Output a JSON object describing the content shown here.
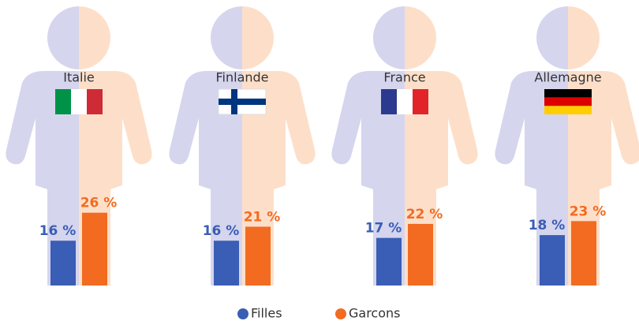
{
  "chart_data": {
    "type": "bar",
    "categories": [
      "Italie",
      "Finlande",
      "France",
      "Allemagne"
    ],
    "series": [
      {
        "name": "Filles",
        "color": "#3a5db5",
        "values": [
          16,
          16,
          17,
          18
        ],
        "value_labels": [
          "16 %",
          "16 %",
          "17 %",
          "18 %"
        ]
      },
      {
        "name": "Garcons",
        "color": "#f26b21",
        "values": [
          26,
          21,
          22,
          23
        ],
        "value_labels": [
          "26 %",
          "21 %",
          "22 %",
          "23 %"
        ]
      }
    ]
  }
}
